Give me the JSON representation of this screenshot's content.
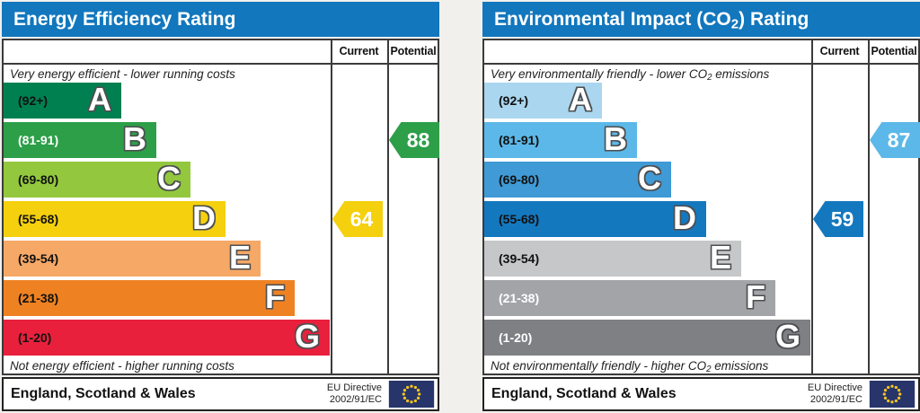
{
  "page": {
    "background": "#f1f0ed"
  },
  "charts": [
    {
      "title": {
        "pre": "Energy Efficiency Rating",
        "sub": "",
        "post": ""
      },
      "header_color": "#1277bd",
      "columns": {
        "current": "Current",
        "potential": "Potential"
      },
      "notes": {
        "top": {
          "pre": "Very energy efficient - lower running costs",
          "sub": "",
          "post": ""
        },
        "bottom": {
          "pre": "Not energy efficient - higher running costs",
          "sub": "",
          "post": ""
        }
      },
      "bands": [
        {
          "letter": "A",
          "range": "(92+)",
          "color": "#008050",
          "text_color": "#111111"
        },
        {
          "letter": "B",
          "range": "(81-91)",
          "color": "#2c9f48",
          "text_color": "#ffffff"
        },
        {
          "letter": "C",
          "range": "(69-80)",
          "color": "#93c83e",
          "text_color": "#111111"
        },
        {
          "letter": "D",
          "range": "(55-68)",
          "color": "#f4d00e",
          "text_color": "#111111"
        },
        {
          "letter": "E",
          "range": "(39-54)",
          "color": "#f6a866",
          "text_color": "#111111"
        },
        {
          "letter": "F",
          "range": "(21-38)",
          "color": "#ee8223",
          "text_color": "#111111"
        },
        {
          "letter": "G",
          "range": "(1-20)",
          "color": "#e8203c",
          "text_color": "#111111"
        }
      ],
      "indicators": {
        "current": {
          "value": "64",
          "band": "D",
          "color": "#f4d00e"
        },
        "potential": {
          "value": "88",
          "band": "B",
          "color": "#2c9f48"
        }
      },
      "footer": {
        "region": "England, Scotland & Wales",
        "directive_line1": "EU Directive",
        "directive_line2": "2002/91/EC"
      }
    },
    {
      "title": {
        "pre": "Environmental Impact (CO",
        "sub": "2",
        "post": ") Rating"
      },
      "header_color": "#1277bd",
      "columns": {
        "current": "Current",
        "potential": "Potential"
      },
      "notes": {
        "top": {
          "pre": "Very environmentally friendly - lower CO",
          "sub": "2",
          "post": " emissions"
        },
        "bottom": {
          "pre": "Not environmentally friendly - higher CO",
          "sub": "2",
          "post": " emissions"
        }
      },
      "bands": [
        {
          "letter": "A",
          "range": "(92+)",
          "color": "#aad6f0",
          "text_color": "#111111"
        },
        {
          "letter": "B",
          "range": "(81-91)",
          "color": "#5cb8e8",
          "text_color": "#111111"
        },
        {
          "letter": "C",
          "range": "(69-80)",
          "color": "#3f9ad5",
          "text_color": "#111111"
        },
        {
          "letter": "D",
          "range": "(55-68)",
          "color": "#1478bf",
          "text_color": "#111111"
        },
        {
          "letter": "E",
          "range": "(39-54)",
          "color": "#c6c7c9",
          "text_color": "#111111"
        },
        {
          "letter": "F",
          "range": "(21-38)",
          "color": "#a2a4a7",
          "text_color": "#ffffff"
        },
        {
          "letter": "G",
          "range": "(1-20)",
          "color": "#7e8083",
          "text_color": "#ffffff"
        }
      ],
      "indicators": {
        "current": {
          "value": "59",
          "band": "D",
          "color": "#1478bf"
        },
        "potential": {
          "value": "87",
          "band": "B",
          "color": "#5cb8e8"
        }
      },
      "footer": {
        "region": "England, Scotland & Wales",
        "directive_line1": "EU Directive",
        "directive_line2": "2002/91/EC"
      }
    }
  ],
  "chart_data": [
    {
      "type": "bar",
      "title": "Energy Efficiency Rating",
      "categories": [
        "A",
        "B",
        "C",
        "D",
        "E",
        "F",
        "G"
      ],
      "band_ranges": [
        "92+",
        "81-91",
        "69-80",
        "55-68",
        "39-54",
        "21-38",
        "1-20"
      ],
      "series": [
        {
          "name": "Current",
          "value": 64,
          "band": "D"
        },
        {
          "name": "Potential",
          "value": 88,
          "band": "B"
        }
      ],
      "top_annotation": "Very energy efficient - lower running costs",
      "bottom_annotation": "Not energy efficient - higher running costs",
      "footer": "England, Scotland & Wales",
      "directive": "EU Directive 2002/91/EC",
      "xlabel": "",
      "ylabel": "",
      "value_range": [
        1,
        100
      ]
    },
    {
      "type": "bar",
      "title": "Environmental Impact (CO2) Rating",
      "categories": [
        "A",
        "B",
        "C",
        "D",
        "E",
        "F",
        "G"
      ],
      "band_ranges": [
        "92+",
        "81-91",
        "69-80",
        "55-68",
        "39-54",
        "21-38",
        "1-20"
      ],
      "series": [
        {
          "name": "Current",
          "value": 59,
          "band": "D"
        },
        {
          "name": "Potential",
          "value": 87,
          "band": "B"
        }
      ],
      "top_annotation": "Very environmentally friendly - lower CO2 emissions",
      "bottom_annotation": "Not environmentally friendly - higher CO2 emissions",
      "footer": "England, Scotland & Wales",
      "directive": "EU Directive 2002/91/EC",
      "xlabel": "",
      "ylabel": "",
      "value_range": [
        1,
        100
      ]
    }
  ]
}
